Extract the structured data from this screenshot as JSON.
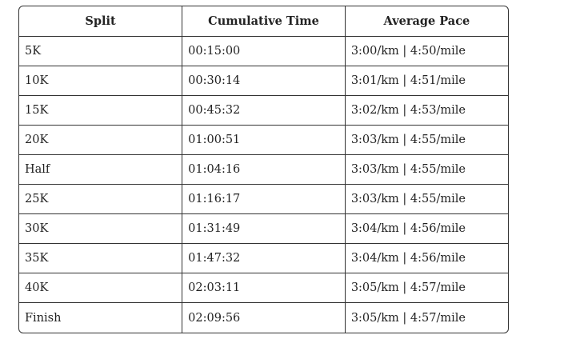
{
  "table": {
    "header": [
      "Split",
      "Cumulative Time",
      "Average Pace"
    ],
    "rows": [
      [
        "5K",
        "00:15:00",
        "3:00/km | 4:50/mile"
      ],
      [
        "10K",
        "00:30:14",
        "3:01/km | 4:51/mile"
      ],
      [
        "15K",
        "00:45:32",
        "3:02/km | 4:53/mile"
      ],
      [
        "20K",
        "01:00:51",
        "3:03/km | 4:55/mile"
      ],
      [
        "Half",
        "01:04:16",
        "3:03/km | 4:55/mile"
      ],
      [
        "25K",
        "01:16:17",
        "3:03/km | 4:55/mile"
      ],
      [
        "30K",
        "01:31:49",
        "3:04/km | 4:56/mile"
      ],
      [
        "35K",
        "01:47:32",
        "3:04/km | 4:56/mile"
      ],
      [
        "40K",
        "02:03:11",
        "3:05/km | 4:57/mile"
      ],
      [
        "Finish",
        "02:09:56",
        "3:05/km | 4:57/mile"
      ]
    ]
  }
}
